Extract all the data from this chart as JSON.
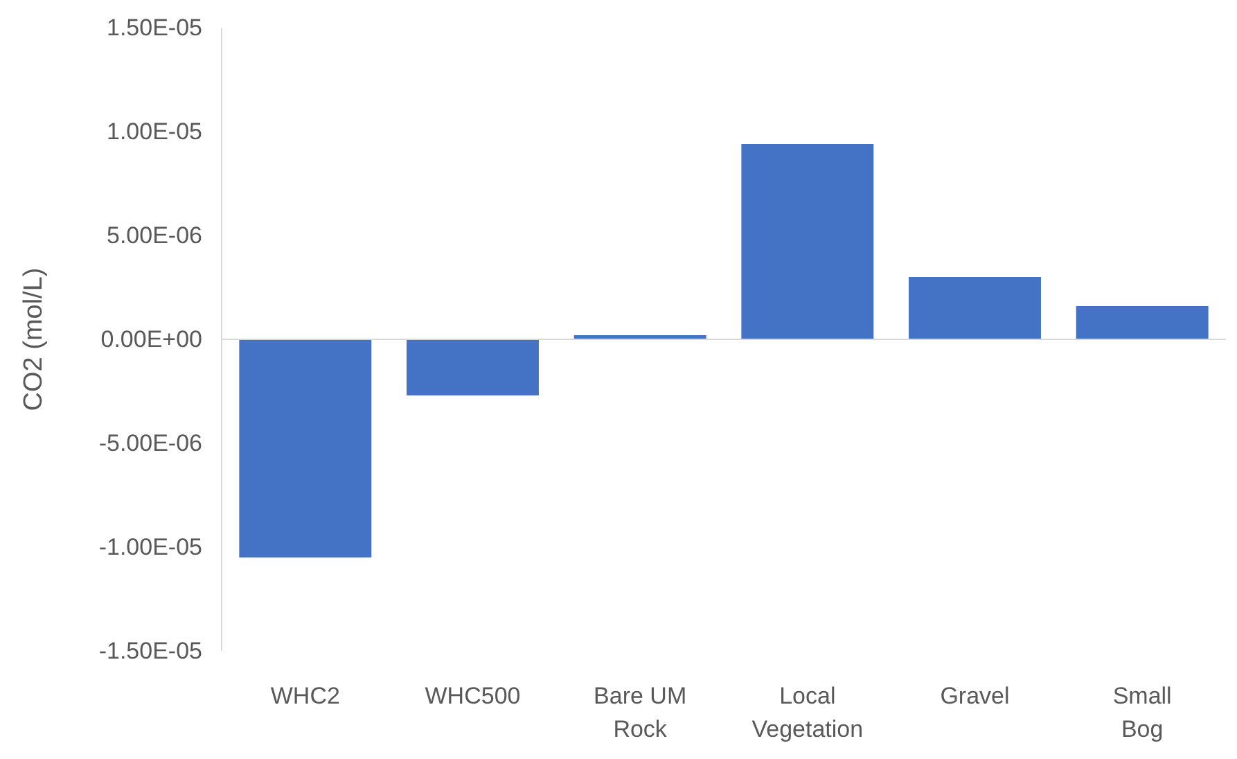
{
  "chart_data": {
    "type": "bar",
    "ylabel": "CO2 (mol/L)",
    "categories": [
      "WHC2",
      "WHC500",
      "Bare UM Rock",
      "Local Vegetation",
      "Gravel",
      "Small Bog"
    ],
    "values": [
      -1.05e-05,
      -2.7e-06,
      2e-07,
      9.4e-06,
      3e-06,
      1.6e-06
    ],
    "color": "#4472c4",
    "ylim": [
      -1.5e-05,
      1.5e-05
    ],
    "yticks": [
      {
        "value": -1.5e-05,
        "label": "-1.50E-05"
      },
      {
        "value": -1e-05,
        "label": "-1.00E-05"
      },
      {
        "value": -5e-06,
        "label": "-5.00E-06"
      },
      {
        "value": 0,
        "label": "0.00E+00"
      },
      {
        "value": 5e-06,
        "label": "5.00E-06"
      },
      {
        "value": 1e-05,
        "label": "1.00E-05"
      },
      {
        "value": 1.5e-05,
        "label": "1.50E-05"
      }
    ]
  }
}
